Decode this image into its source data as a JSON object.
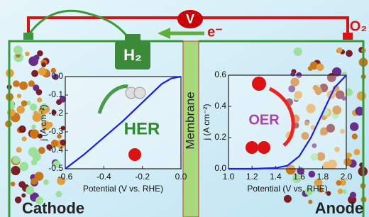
{
  "labels": {
    "voltage": "V",
    "electron": "e⁻",
    "hydrogen": "H₂",
    "oxygen": "O₂",
    "her": "HER",
    "oer": "OER",
    "membrane": "Membrane",
    "cathode": "Cathode",
    "anode": "Anode"
  },
  "chart_data": [
    {
      "type": "line",
      "x_label": "Potential (V vs. RHE)",
      "y_label": "j (A cm⁻²)",
      "xlim": [
        -0.6,
        0.0
      ],
      "xticks": [
        -0.6,
        -0.4,
        -0.2,
        {
          "value": 0,
          "label": "0.0"
        }
      ],
      "ylim": [
        -0.5,
        0.0
      ],
      "yticks": [
        {
          "value": 0,
          "label": "0.0"
        },
        -0.1,
        -0.2,
        -0.3,
        -0.4,
        -0.5
      ],
      "x": [
        -0.6,
        -0.5,
        -0.4,
        -0.3,
        -0.2,
        -0.15,
        -0.1,
        -0.05,
        0.0
      ],
      "series": [
        {
          "color": "#1a1aff",
          "values": [
            -0.5,
            -0.42,
            -0.33,
            -0.24,
            -0.14,
            -0.09,
            -0.04,
            -0.01,
            0.0
          ]
        }
      ]
    },
    {
      "type": "line",
      "x_label": "Potential (V vs. RHE)",
      "y_label": "j (A cm⁻²)",
      "xlim": [
        1.0,
        2.0
      ],
      "xticks": [
        {
          "value": 1,
          "label": "1.0"
        },
        1.2,
        1.4,
        1.6,
        1.8,
        {
          "value": 2,
          "label": "2.0"
        }
      ],
      "ylim": [
        0.0,
        0.6
      ],
      "yticks": [
        {
          "value": 0,
          "label": "0.0"
        },
        0.2,
        0.4,
        0.6
      ],
      "x": [
        1.0,
        1.2,
        1.4,
        1.5,
        1.6,
        1.7,
        1.8,
        1.9,
        2.0
      ],
      "series": [
        {
          "color": "#1a1aff",
          "values": [
            0,
            0,
            0.005,
            0.02,
            0.08,
            0.2,
            0.36,
            0.52,
            0.6
          ]
        }
      ]
    }
  ]
}
